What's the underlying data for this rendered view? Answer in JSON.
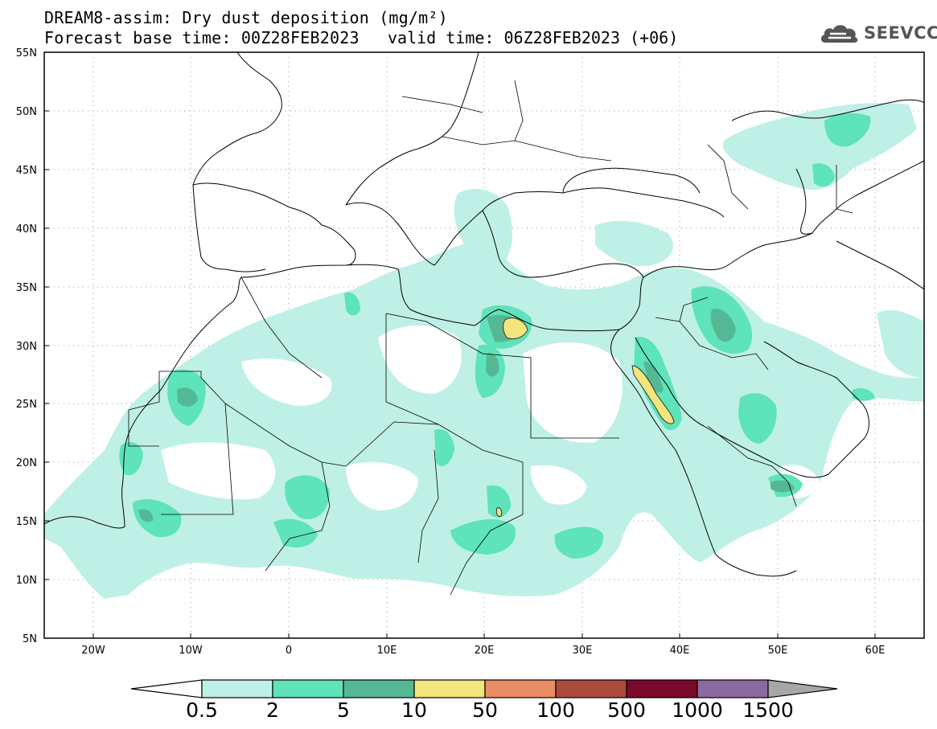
{
  "title": {
    "line1": "DREAM8-assim: Dry dust deposition (mg/m²)",
    "line2_left": "Forecast base time: 00Z28FEB2023",
    "line2_right": "valid time: 06Z28FEB2023 (+06)"
  },
  "logo": {
    "text": "SEEVCCC",
    "icon": "cloud-icon"
  },
  "map": {
    "lat_labels": [
      "55N",
      "50N",
      "45N",
      "40N",
      "35N",
      "30N",
      "25N",
      "20N",
      "15N",
      "10N",
      "5N"
    ],
    "lon_labels": [
      "20W",
      "10W",
      "0",
      "10E",
      "20E",
      "30E",
      "40E",
      "50E",
      "60E"
    ],
    "lon_range": [
      -25,
      65
    ],
    "lat_range": [
      5,
      55
    ]
  },
  "colorbar": {
    "labels": [
      "0.5",
      "2",
      "5",
      "10",
      "50",
      "100",
      "500",
      "1000",
      "1500"
    ],
    "colors": [
      "#ffffff",
      "#bff0e6",
      "#5ee3bb",
      "#55b894",
      "#f1e57c",
      "#ea8c64",
      "#ab4b3e",
      "#7a0a2c",
      "#8b6aa0",
      "#a7a7a7"
    ]
  }
}
